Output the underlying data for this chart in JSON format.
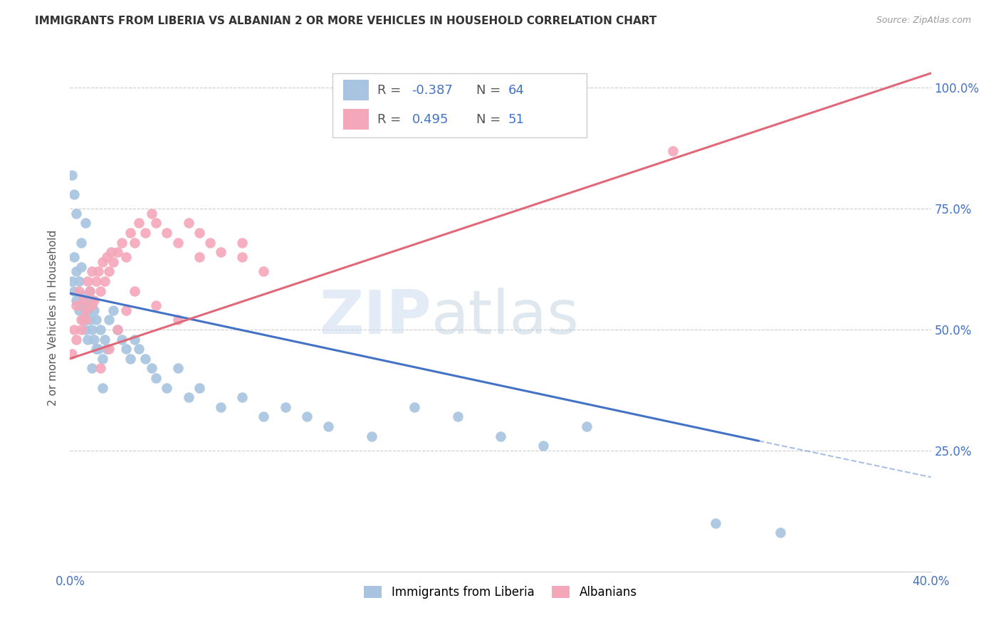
{
  "title": "IMMIGRANTS FROM LIBERIA VS ALBANIAN 2 OR MORE VEHICLES IN HOUSEHOLD CORRELATION CHART",
  "source": "Source: ZipAtlas.com",
  "ylabel": "2 or more Vehicles in Household",
  "xlim": [
    0.0,
    0.4
  ],
  "ylim": [
    0.0,
    1.05
  ],
  "xticks": [
    0.0,
    0.1,
    0.2,
    0.3,
    0.4
  ],
  "xtick_labels": [
    "0.0%",
    "",
    "",
    "",
    "40.0%"
  ],
  "ytick_labels": [
    "",
    "25.0%",
    "50.0%",
    "75.0%",
    "100.0%"
  ],
  "yticks": [
    0.0,
    0.25,
    0.5,
    0.75,
    1.0
  ],
  "liberia_R": -0.387,
  "liberia_N": 64,
  "albanian_R": 0.495,
  "albanian_N": 51,
  "liberia_color": "#a8c4e0",
  "albanian_color": "#f4a7b9",
  "liberia_line_color": "#4472C4",
  "albanian_line_color": "#E06878",
  "background_color": "#ffffff",
  "lib_line_x0": 0.0,
  "lib_line_y0": 0.575,
  "lib_line_x1": 0.32,
  "lib_line_y1": 0.27,
  "lib_line_dash_x1": 0.4,
  "lib_line_dash_y1": 0.195,
  "alb_line_x0": 0.0,
  "alb_line_y0": 0.44,
  "alb_line_x1": 0.4,
  "alb_line_y1": 1.03,
  "liberia_x": [
    0.001,
    0.002,
    0.002,
    0.003,
    0.003,
    0.004,
    0.004,
    0.005,
    0.005,
    0.006,
    0.006,
    0.007,
    0.007,
    0.008,
    0.008,
    0.009,
    0.009,
    0.01,
    0.01,
    0.011,
    0.011,
    0.012,
    0.013,
    0.014,
    0.015,
    0.016,
    0.017,
    0.018,
    0.02,
    0.022,
    0.024,
    0.026,
    0.028,
    0.03,
    0.032,
    0.035,
    0.038,
    0.04,
    0.045,
    0.05,
    0.055,
    0.06,
    0.07,
    0.08,
    0.09,
    0.1,
    0.11,
    0.12,
    0.14,
    0.16,
    0.18,
    0.2,
    0.22,
    0.24,
    0.001,
    0.002,
    0.003,
    0.005,
    0.007,
    0.01,
    0.012,
    0.015,
    0.3,
    0.33
  ],
  "liberia_y": [
    0.6,
    0.58,
    0.65,
    0.56,
    0.62,
    0.54,
    0.6,
    0.55,
    0.63,
    0.57,
    0.52,
    0.5,
    0.55,
    0.48,
    0.54,
    0.52,
    0.58,
    0.5,
    0.56,
    0.54,
    0.48,
    0.52,
    0.46,
    0.5,
    0.44,
    0.48,
    0.46,
    0.52,
    0.54,
    0.5,
    0.48,
    0.46,
    0.44,
    0.48,
    0.46,
    0.44,
    0.42,
    0.4,
    0.38,
    0.42,
    0.36,
    0.38,
    0.34,
    0.36,
    0.32,
    0.34,
    0.32,
    0.3,
    0.28,
    0.34,
    0.32,
    0.28,
    0.26,
    0.3,
    0.82,
    0.78,
    0.74,
    0.68,
    0.72,
    0.42,
    0.46,
    0.38,
    0.1,
    0.08
  ],
  "albanian_x": [
    0.002,
    0.003,
    0.004,
    0.005,
    0.006,
    0.007,
    0.008,
    0.009,
    0.01,
    0.011,
    0.012,
    0.013,
    0.014,
    0.015,
    0.016,
    0.017,
    0.018,
    0.019,
    0.02,
    0.022,
    0.024,
    0.026,
    0.028,
    0.03,
    0.032,
    0.035,
    0.038,
    0.04,
    0.045,
    0.05,
    0.055,
    0.06,
    0.065,
    0.07,
    0.08,
    0.09,
    0.001,
    0.003,
    0.005,
    0.007,
    0.01,
    0.014,
    0.018,
    0.022,
    0.026,
    0.03,
    0.04,
    0.05,
    0.06,
    0.08,
    0.28
  ],
  "albanian_y": [
    0.5,
    0.55,
    0.58,
    0.52,
    0.56,
    0.54,
    0.6,
    0.58,
    0.62,
    0.56,
    0.6,
    0.62,
    0.58,
    0.64,
    0.6,
    0.65,
    0.62,
    0.66,
    0.64,
    0.66,
    0.68,
    0.65,
    0.7,
    0.68,
    0.72,
    0.7,
    0.74,
    0.72,
    0.7,
    0.68,
    0.72,
    0.7,
    0.68,
    0.66,
    0.65,
    0.62,
    0.45,
    0.48,
    0.5,
    0.52,
    0.55,
    0.42,
    0.46,
    0.5,
    0.54,
    0.58,
    0.55,
    0.52,
    0.65,
    0.68,
    0.87
  ]
}
